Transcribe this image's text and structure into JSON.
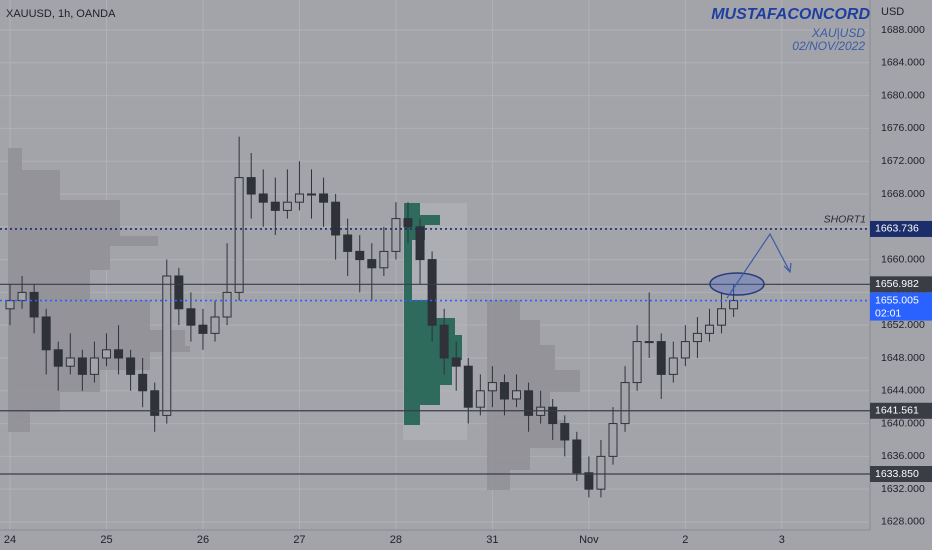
{
  "chart_data": {
    "type": "candlestick",
    "title": "XAUUSD, 1h, OANDA",
    "watermark": {
      "author": "MUSTAFACONCORD",
      "symbol": "XAU|USD",
      "date": "02/NOV/2022"
    },
    "y_axis_label": "USD",
    "candle_color": "#2f3239",
    "categories": [
      "24",
      null,
      null,
      null,
      null,
      null,
      null,
      null,
      "25",
      null,
      null,
      null,
      null,
      null,
      null,
      null,
      "26",
      null,
      null,
      null,
      null,
      null,
      null,
      null,
      "27",
      null,
      null,
      null,
      null,
      null,
      null,
      null,
      "28",
      null,
      null,
      null,
      null,
      null,
      null,
      null,
      "31",
      null,
      null,
      null,
      null,
      null,
      null,
      null,
      "Nov",
      null,
      null,
      null,
      null,
      null,
      null,
      null,
      "2",
      null,
      null,
      null,
      null,
      null,
      null,
      null,
      "3"
    ],
    "ohlc": [
      [
        1654,
        1657,
        1652,
        1655
      ],
      [
        1655,
        1658,
        1654,
        1656
      ],
      [
        1656,
        1657,
        1651,
        1653
      ],
      [
        1653,
        1654,
        1646,
        1649
      ],
      [
        1649,
        1650,
        1644,
        1647
      ],
      [
        1647,
        1651,
        1646,
        1648
      ],
      [
        1648,
        1649,
        1644,
        1646
      ],
      [
        1646,
        1650,
        1645,
        1648
      ],
      [
        1648,
        1651,
        1647,
        1649
      ],
      [
        1649,
        1652,
        1646,
        1648
      ],
      [
        1648,
        1649,
        1644,
        1646
      ],
      [
        1646,
        1648,
        1642,
        1644
      ],
      [
        1644,
        1645,
        1639,
        1641
      ],
      [
        1641,
        1660,
        1640,
        1658
      ],
      [
        1658,
        1659,
        1652,
        1654
      ],
      [
        1654,
        1656,
        1650,
        1652
      ],
      [
        1652,
        1654,
        1649,
        1651
      ],
      [
        1651,
        1655,
        1650,
        1653
      ],
      [
        1653,
        1662,
        1652,
        1656
      ],
      [
        1656,
        1675,
        1655,
        1670
      ],
      [
        1670,
        1673,
        1665,
        1668
      ],
      [
        1668,
        1671,
        1664,
        1667
      ],
      [
        1667,
        1670,
        1663,
        1666
      ],
      [
        1666,
        1671,
        1665,
        1667
      ],
      [
        1667,
        1672,
        1666,
        1668
      ],
      [
        1668,
        1671,
        1665,
        1668
      ],
      [
        1668,
        1670,
        1664,
        1667
      ],
      [
        1667,
        1668,
        1660,
        1663
      ],
      [
        1663,
        1665,
        1658,
        1661
      ],
      [
        1661,
        1663,
        1656,
        1660
      ],
      [
        1660,
        1662,
        1655,
        1659
      ],
      [
        1659,
        1664,
        1658,
        1661
      ],
      [
        1661,
        1667,
        1660,
        1665
      ],
      [
        1665,
        1667,
        1662,
        1664
      ],
      [
        1664,
        1665,
        1657,
        1660
      ],
      [
        1660,
        1661,
        1650,
        1652
      ],
      [
        1652,
        1654,
        1646,
        1648
      ],
      [
        1648,
        1650,
        1644,
        1647
      ],
      [
        1647,
        1648,
        1640,
        1642
      ],
      [
        1642,
        1646,
        1641,
        1644
      ],
      [
        1644,
        1647,
        1642,
        1645
      ],
      [
        1645,
        1646,
        1641,
        1643
      ],
      [
        1643,
        1646,
        1642,
        1644
      ],
      [
        1644,
        1645,
        1639,
        1641
      ],
      [
        1641,
        1644,
        1640,
        1642
      ],
      [
        1642,
        1643,
        1638,
        1640
      ],
      [
        1640,
        1641,
        1636,
        1638
      ],
      [
        1638,
        1639,
        1633,
        1634
      ],
      [
        1634,
        1636,
        1631,
        1632
      ],
      [
        1632,
        1638,
        1631,
        1636
      ],
      [
        1636,
        1642,
        1635,
        1640
      ],
      [
        1640,
        1647,
        1639,
        1645
      ],
      [
        1645,
        1652,
        1644,
        1650
      ],
      [
        1650,
        1656,
        1648,
        1650
      ],
      [
        1650,
        1651,
        1643,
        1646
      ],
      [
        1646,
        1650,
        1645,
        1648
      ],
      [
        1648,
        1652,
        1647,
        1650
      ],
      [
        1650,
        1653,
        1648,
        1651
      ],
      [
        1651,
        1654,
        1650,
        1652
      ],
      [
        1652,
        1656,
        1651,
        1654
      ],
      [
        1654,
        1657,
        1653,
        1655.005
      ],
      null,
      null,
      null,
      null
    ],
    "ylim": [
      1627.02,
      1691.66
    ],
    "yticks": [
      {
        "value": 1628,
        "label": "1628.000"
      },
      {
        "value": 1632,
        "label": "1632.000"
      },
      {
        "value": 1636,
        "label": "1636.000"
      },
      {
        "value": 1640,
        "label": "1640.000"
      },
      {
        "value": 1644,
        "label": "1644.000"
      },
      {
        "value": 1648,
        "label": "1648.000"
      },
      {
        "value": 1652,
        "label": "1652.000"
      },
      {
        "value": 1656,
        "label": "1656.000"
      },
      {
        "value": 1660,
        "label": "1660.000"
      },
      {
        "value": 1664,
        "label": "1664.000"
      },
      {
        "value": 1668,
        "label": "1668.000"
      },
      {
        "value": 1672,
        "label": "1672.000"
      },
      {
        "value": 1676,
        "label": "1676.000"
      },
      {
        "value": 1680,
        "label": "1680.000"
      },
      {
        "value": 1684,
        "label": "1684.000"
      },
      {
        "value": 1688,
        "label": "1688.000"
      }
    ],
    "grid": true,
    "levels": [
      {
        "price": 1663.736,
        "label": "SHORT1",
        "color": "#1b2d6b",
        "style": "dotted"
      },
      {
        "price": 1656.982,
        "color": "#3a3d45",
        "style": "solid"
      },
      {
        "price": 1655.005,
        "countdown": "02:01",
        "color": "#2962ff",
        "style": "dotted"
      },
      {
        "price": 1641.561,
        "color": "#3a3d45",
        "style": "solid"
      },
      {
        "price": {
          "value": 1633.85,
          "label": "1633.850"
        },
        "color": "#3a3d45",
        "style": "solid"
      }
    ]
  }
}
